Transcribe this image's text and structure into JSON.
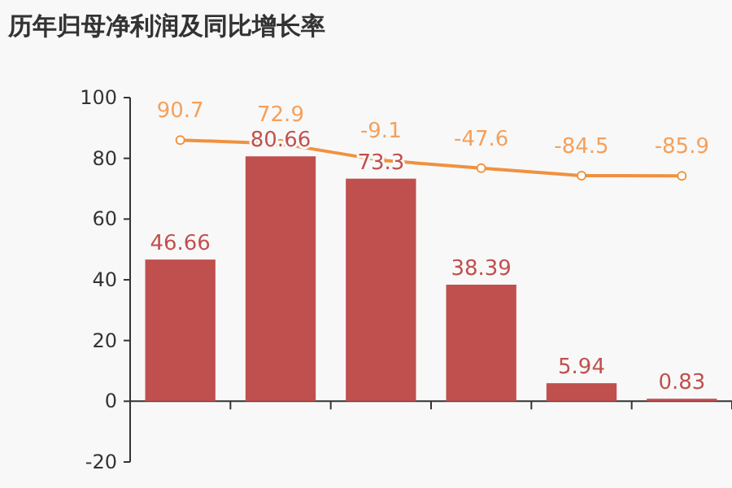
{
  "chart_data": {
    "type": "bar",
    "title": "历年归母净利润及同比增长率",
    "categories": [
      null,
      null,
      null,
      null,
      null,
      null
    ],
    "series": [
      {
        "color": "#c0504d",
        "values": [
          46.66,
          80.66,
          73.3,
          38.39,
          5.94,
          0.83
        ]
      },
      {
        "type": "line",
        "axis": "y2",
        "color": "#f0913f",
        "values": [
          90.7,
          72.9,
          -9.1,
          -47.6,
          -84.5,
          -85.9
        ]
      }
    ],
    "ylim": [
      -20,
      100
    ],
    "yticks": [
      -20,
      0,
      20,
      40,
      60,
      80,
      100
    ],
    "y2lim": [
      -1496,
      300
    ],
    "data_labels": true,
    "marker": "circle",
    "tick_labels": "y"
  }
}
